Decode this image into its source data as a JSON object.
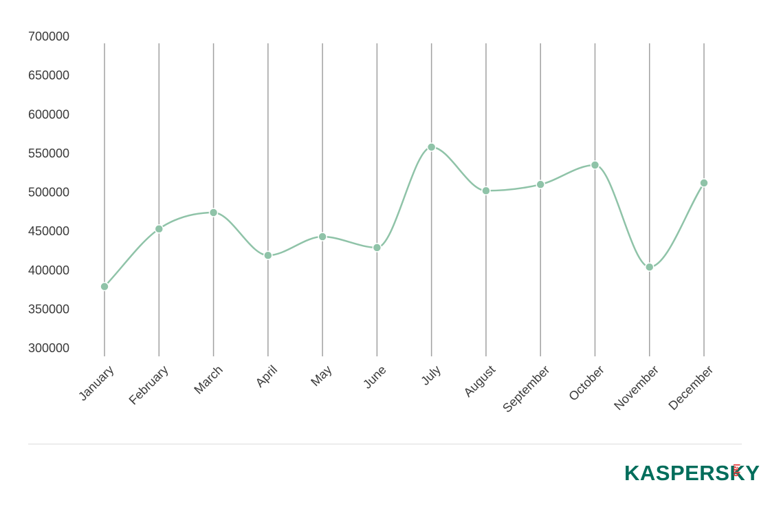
{
  "chart_data": {
    "type": "line",
    "categories": [
      "January",
      "February",
      "March",
      "April",
      "May",
      "June",
      "July",
      "August",
      "September",
      "October",
      "November",
      "December"
    ],
    "series": [
      {
        "values": [
          379000,
          453000,
          474000,
          419000,
          443000,
          429000,
          558000,
          502000,
          510000,
          535000,
          404000,
          512000
        ]
      }
    ],
    "yticks": [
      "700000",
      "650000",
      "600000",
      "550000",
      "500000",
      "450000",
      "400000",
      "350000",
      "300000"
    ],
    "ylim": [
      300000,
      700000
    ],
    "grid": "vertical",
    "line_color": "#8fc3a8",
    "gridline_color": "#a0a0a0"
  },
  "logo": {
    "main": "KASPERSKY",
    "sub": "lab",
    "main_color": "#006d5b",
    "sub_color": "#e63e3e"
  }
}
